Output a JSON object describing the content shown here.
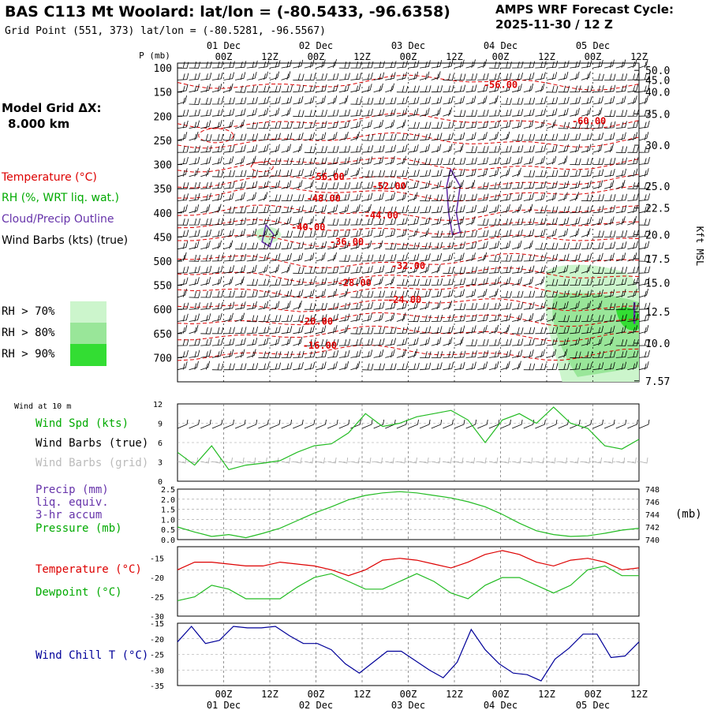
{
  "header": {
    "title": "BAS C113 Mt Woolard:  lat/lon = (-80.5433, -96.6358)",
    "grid_point": "Grid Point (551, 373) lat/lon = (-80.5281, -96.5567)",
    "cycle_label": "AMPS WRF Forecast Cycle:",
    "cycle_value": "2025-11-30 / 12  Z",
    "model_grid_label": "Model Grid ΔX:",
    "model_grid_value": "8.000 km"
  },
  "legend": {
    "temperature": "Temperature (°C)",
    "rh": "RH (%, WRT liq. wat.)",
    "cloud": "Cloud/Precip Outline",
    "wind": "Wind Barbs (kts) (true)",
    "rh_levels": [
      {
        "label": "RH > 70%",
        "color": "#ccf5cc"
      },
      {
        "label": "RH > 80%",
        "color": "#99e699"
      },
      {
        "label": "RH > 90%",
        "color": "#33dd33"
      }
    ]
  },
  "time_axis": {
    "ticks": [
      "00Z",
      "12Z",
      "00Z",
      "12Z",
      "00Z",
      "12Z",
      "00Z",
      "12Z",
      "00Z",
      "12Z"
    ],
    "days": [
      "01 Dec",
      "02 Dec",
      "03 Dec",
      "04 Dec",
      "05 Dec"
    ],
    "hours": [
      0,
      6,
      12,
      18,
      24,
      30,
      36,
      42,
      48,
      54,
      60,
      66,
      72,
      78,
      84,
      90,
      96,
      102,
      108,
      114,
      120
    ],
    "tick_hours": [
      12,
      24,
      36,
      48,
      60,
      72,
      84,
      96,
      108,
      120
    ],
    "day_hours": [
      12,
      36,
      60,
      84,
      108
    ]
  },
  "colors": {
    "temperature": "#dd0000",
    "rh_green": "#00bb00",
    "cloud": "#6633aa",
    "wind_true": "#000000",
    "wind_grid": "#aaaaaa",
    "windchill": "#000099",
    "grid": "#999999"
  },
  "chart_data": [
    {
      "type": "contour",
      "name": "sounding",
      "ylabel": "P (mb)",
      "yright_label": "Kft MSL",
      "pressure_ticks": [
        100,
        150,
        200,
        250,
        300,
        350,
        400,
        450,
        500,
        550,
        600,
        650,
        700
      ],
      "kft_ticks": [
        {
          "label": "50.0",
          "p": 105
        },
        {
          "label": "45.0",
          "p": 125
        },
        {
          "label": "40.0",
          "p": 150
        },
        {
          "label": "35.0",
          "p": 195
        },
        {
          "label": "30.0",
          "p": 260
        },
        {
          "label": "25.0",
          "p": 345
        },
        {
          "label": "22.5",
          "p": 390
        },
        {
          "label": "20.0",
          "p": 445
        },
        {
          "label": "17.5",
          "p": 495
        },
        {
          "label": "15.0",
          "p": 545
        },
        {
          "label": "12.5",
          "p": 605
        },
        {
          "label": "10.0",
          "p": 670
        },
        {
          "label": "7.57",
          "p": 748
        }
      ],
      "ylim": [
        90,
        750
      ],
      "temperature_labels": [
        {
          "text": "-56.00",
          "hour": 84,
          "p": 135
        },
        {
          "text": "-60.00",
          "hour": 107,
          "p": 210
        },
        {
          "text": "-56.00",
          "hour": 39,
          "p": 325
        },
        {
          "text": "-52.00",
          "hour": 55,
          "p": 345
        },
        {
          "text": "-48.00",
          "hour": 38,
          "p": 370
        },
        {
          "text": "-44.00",
          "hour": 53,
          "p": 405
        },
        {
          "text": "-40.00",
          "hour": 34,
          "p": 430
        },
        {
          "text": "-36.00",
          "hour": 44,
          "p": 460
        },
        {
          "text": "-32.00",
          "hour": 60,
          "p": 510
        },
        {
          "text": "-28.00",
          "hour": 46,
          "p": 545
        },
        {
          "text": "-24.00",
          "hour": 59,
          "p": 580
        },
        {
          "text": "-20.00",
          "hour": 36,
          "p": 625
        },
        {
          "text": "-16.00",
          "hour": 37,
          "p": 675
        }
      ]
    },
    {
      "type": "line",
      "name": "wind10m",
      "title": "Wind at 10 m",
      "label_speed": "Wind Spd (kts)",
      "label_true": "Wind Barbs (true)",
      "label_grid": "Wind Barbs (grid)",
      "ylim": [
        0,
        12
      ],
      "yticks": [
        0,
        3,
        6,
        9,
        12
      ],
      "series": [
        {
          "name": "speed",
          "values": [
            4.5,
            2.5,
            5.5,
            1.8,
            2.5,
            2.8,
            3.2,
            4.5,
            5.5,
            5.8,
            7.5,
            10.5,
            8.5,
            9.0,
            10.0,
            10.5,
            11.0,
            9.5,
            6.0,
            9.5,
            10.5,
            9.0,
            11.5,
            9.0,
            8.2,
            5.5,
            5.0,
            6.5
          ]
        }
      ]
    },
    {
      "type": "line",
      "name": "precip_pressure",
      "label_precip": "Precip (mm)",
      "label_precip2": "liq. equiv.",
      "label_precip3": "3-hr accum",
      "label_pressure": "Pressure (mb)",
      "right_unit": "(mb)",
      "ylim_left": [
        0,
        2.5
      ],
      "yticks_left": [
        "0.0",
        "0.5",
        "1.0",
        "1.5",
        "2.0",
        "2.5"
      ],
      "ylim_right": [
        740,
        748
      ],
      "yticks_right": [
        "740",
        "742",
        "744",
        "746",
        "748"
      ],
      "series": [
        {
          "name": "pressure",
          "values": [
            742.0,
            741.2,
            740.5,
            740.8,
            740.3,
            741.0,
            741.8,
            743.0,
            744.2,
            745.2,
            746.3,
            747.0,
            747.4,
            747.6,
            747.4,
            747.0,
            746.6,
            746.0,
            745.2,
            744.0,
            742.6,
            741.4,
            740.8,
            740.5,
            740.6,
            741.0,
            741.5,
            741.8
          ]
        }
      ]
    },
    {
      "type": "line",
      "name": "temp_dewpoint",
      "label_temp": "Temperature (°C)",
      "label_dew": "Dewpoint (°C)",
      "ylim": [
        -30,
        -12
      ],
      "yticks": [
        -15,
        -20,
        -25,
        -30
      ],
      "series": [
        {
          "name": "temperature",
          "values": [
            -18,
            -16,
            -16,
            -16.5,
            -17,
            -17,
            -16,
            -16.5,
            -17,
            -18,
            -19.5,
            -18,
            -15.5,
            -15,
            -15.5,
            -16.5,
            -17.5,
            -16,
            -14,
            -13,
            -14,
            -16,
            -17,
            -15.5,
            -15,
            -16,
            -18,
            -17.5
          ]
        },
        {
          "name": "dewpoint",
          "values": [
            -26,
            -25,
            -22,
            -23,
            -25.5,
            -25.5,
            -25.5,
            -22.5,
            -20,
            -19,
            -21,
            -23,
            -23,
            -21,
            -19,
            -21,
            -24,
            -25.5,
            -22,
            -20,
            -20,
            -22,
            -24,
            -22,
            -18,
            -17,
            -19.5,
            -19.5
          ]
        }
      ]
    },
    {
      "type": "line",
      "name": "windchill",
      "label": "Wind Chill T (°C)",
      "ylim": [
        -35,
        -15
      ],
      "yticks": [
        -15,
        -20,
        -25,
        -30,
        -35
      ],
      "series": [
        {
          "name": "windchill",
          "values": [
            -21,
            -16,
            -21.5,
            -20.5,
            -16,
            -16.5,
            -16.5,
            -16,
            -19,
            -21.5,
            -21.5,
            -23.5,
            -28,
            -31,
            -27.5,
            -24,
            -24,
            -27,
            -30,
            -32.5,
            -27.5,
            -17,
            -23.5,
            -28,
            -31,
            -31.5,
            -33.5,
            -26.5,
            -23,
            -18.5,
            -18.5,
            -26,
            -25.5,
            -21
          ]
        }
      ]
    }
  ]
}
